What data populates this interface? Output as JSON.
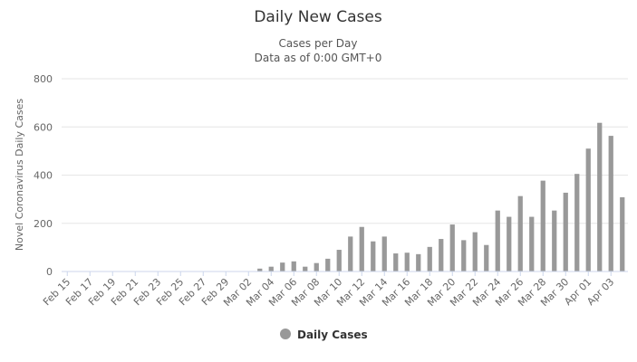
{
  "chart_data": {
    "type": "bar",
    "title": "Daily New Cases",
    "subtitle_lines": [
      "Cases per Day",
      "Data as of 0:00 GMT+0"
    ],
    "ylabel": "Novel Coronavirus Daily Cases",
    "xlabel": "",
    "ylim": [
      0,
      800
    ],
    "yticks": [
      0,
      200,
      400,
      600,
      800
    ],
    "grid": true,
    "legend_position": "bottom-center",
    "bar_color": "#999999",
    "categories": [
      "Feb 15",
      "Feb 16",
      "Feb 17",
      "Feb 18",
      "Feb 19",
      "Feb 20",
      "Feb 21",
      "Feb 22",
      "Feb 23",
      "Feb 24",
      "Feb 25",
      "Feb 26",
      "Feb 27",
      "Feb 28",
      "Feb 29",
      "Mar 01",
      "Mar 02",
      "Mar 03",
      "Mar 04",
      "Mar 05",
      "Mar 06",
      "Mar 07",
      "Mar 08",
      "Mar 09",
      "Mar 10",
      "Mar 11",
      "Mar 12",
      "Mar 13",
      "Mar 14",
      "Mar 15",
      "Mar 16",
      "Mar 17",
      "Mar 18",
      "Mar 19",
      "Mar 20",
      "Mar 21",
      "Mar 22",
      "Mar 23",
      "Mar 24",
      "Mar 25",
      "Mar 26",
      "Mar 27",
      "Mar 28",
      "Mar 29",
      "Mar 30",
      "Mar 31",
      "Apr 01",
      "Apr 02",
      "Apr 03",
      "Apr 04"
    ],
    "tick_labels": [
      "Feb 15",
      "Feb 17",
      "Feb 19",
      "Feb 21",
      "Feb 23",
      "Feb 25",
      "Feb 27",
      "Feb 29",
      "Mar 02",
      "Mar 04",
      "Mar 06",
      "Mar 08",
      "Mar 10",
      "Mar 12",
      "Mar 14",
      "Mar 16",
      "Mar 18",
      "Mar 20",
      "Mar 22",
      "Mar 24",
      "Mar 26",
      "Mar 28",
      "Mar 30",
      "Apr 01",
      "Apr 03"
    ],
    "series": [
      {
        "name": "Daily Cases",
        "values": [
          0,
          0,
          0,
          0,
          0,
          0,
          0,
          0,
          0,
          0,
          0,
          0,
          0,
          0,
          0,
          0,
          0,
          12,
          20,
          37,
          42,
          20,
          35,
          53,
          90,
          145,
          185,
          125,
          145,
          75,
          78,
          72,
          102,
          135,
          195,
          130,
          163,
          110,
          253,
          227,
          313,
          227,
          377,
          253,
          327,
          405,
          510,
          617,
          563,
          308
        ]
      }
    ]
  },
  "legend": {
    "label": "Daily Cases"
  }
}
